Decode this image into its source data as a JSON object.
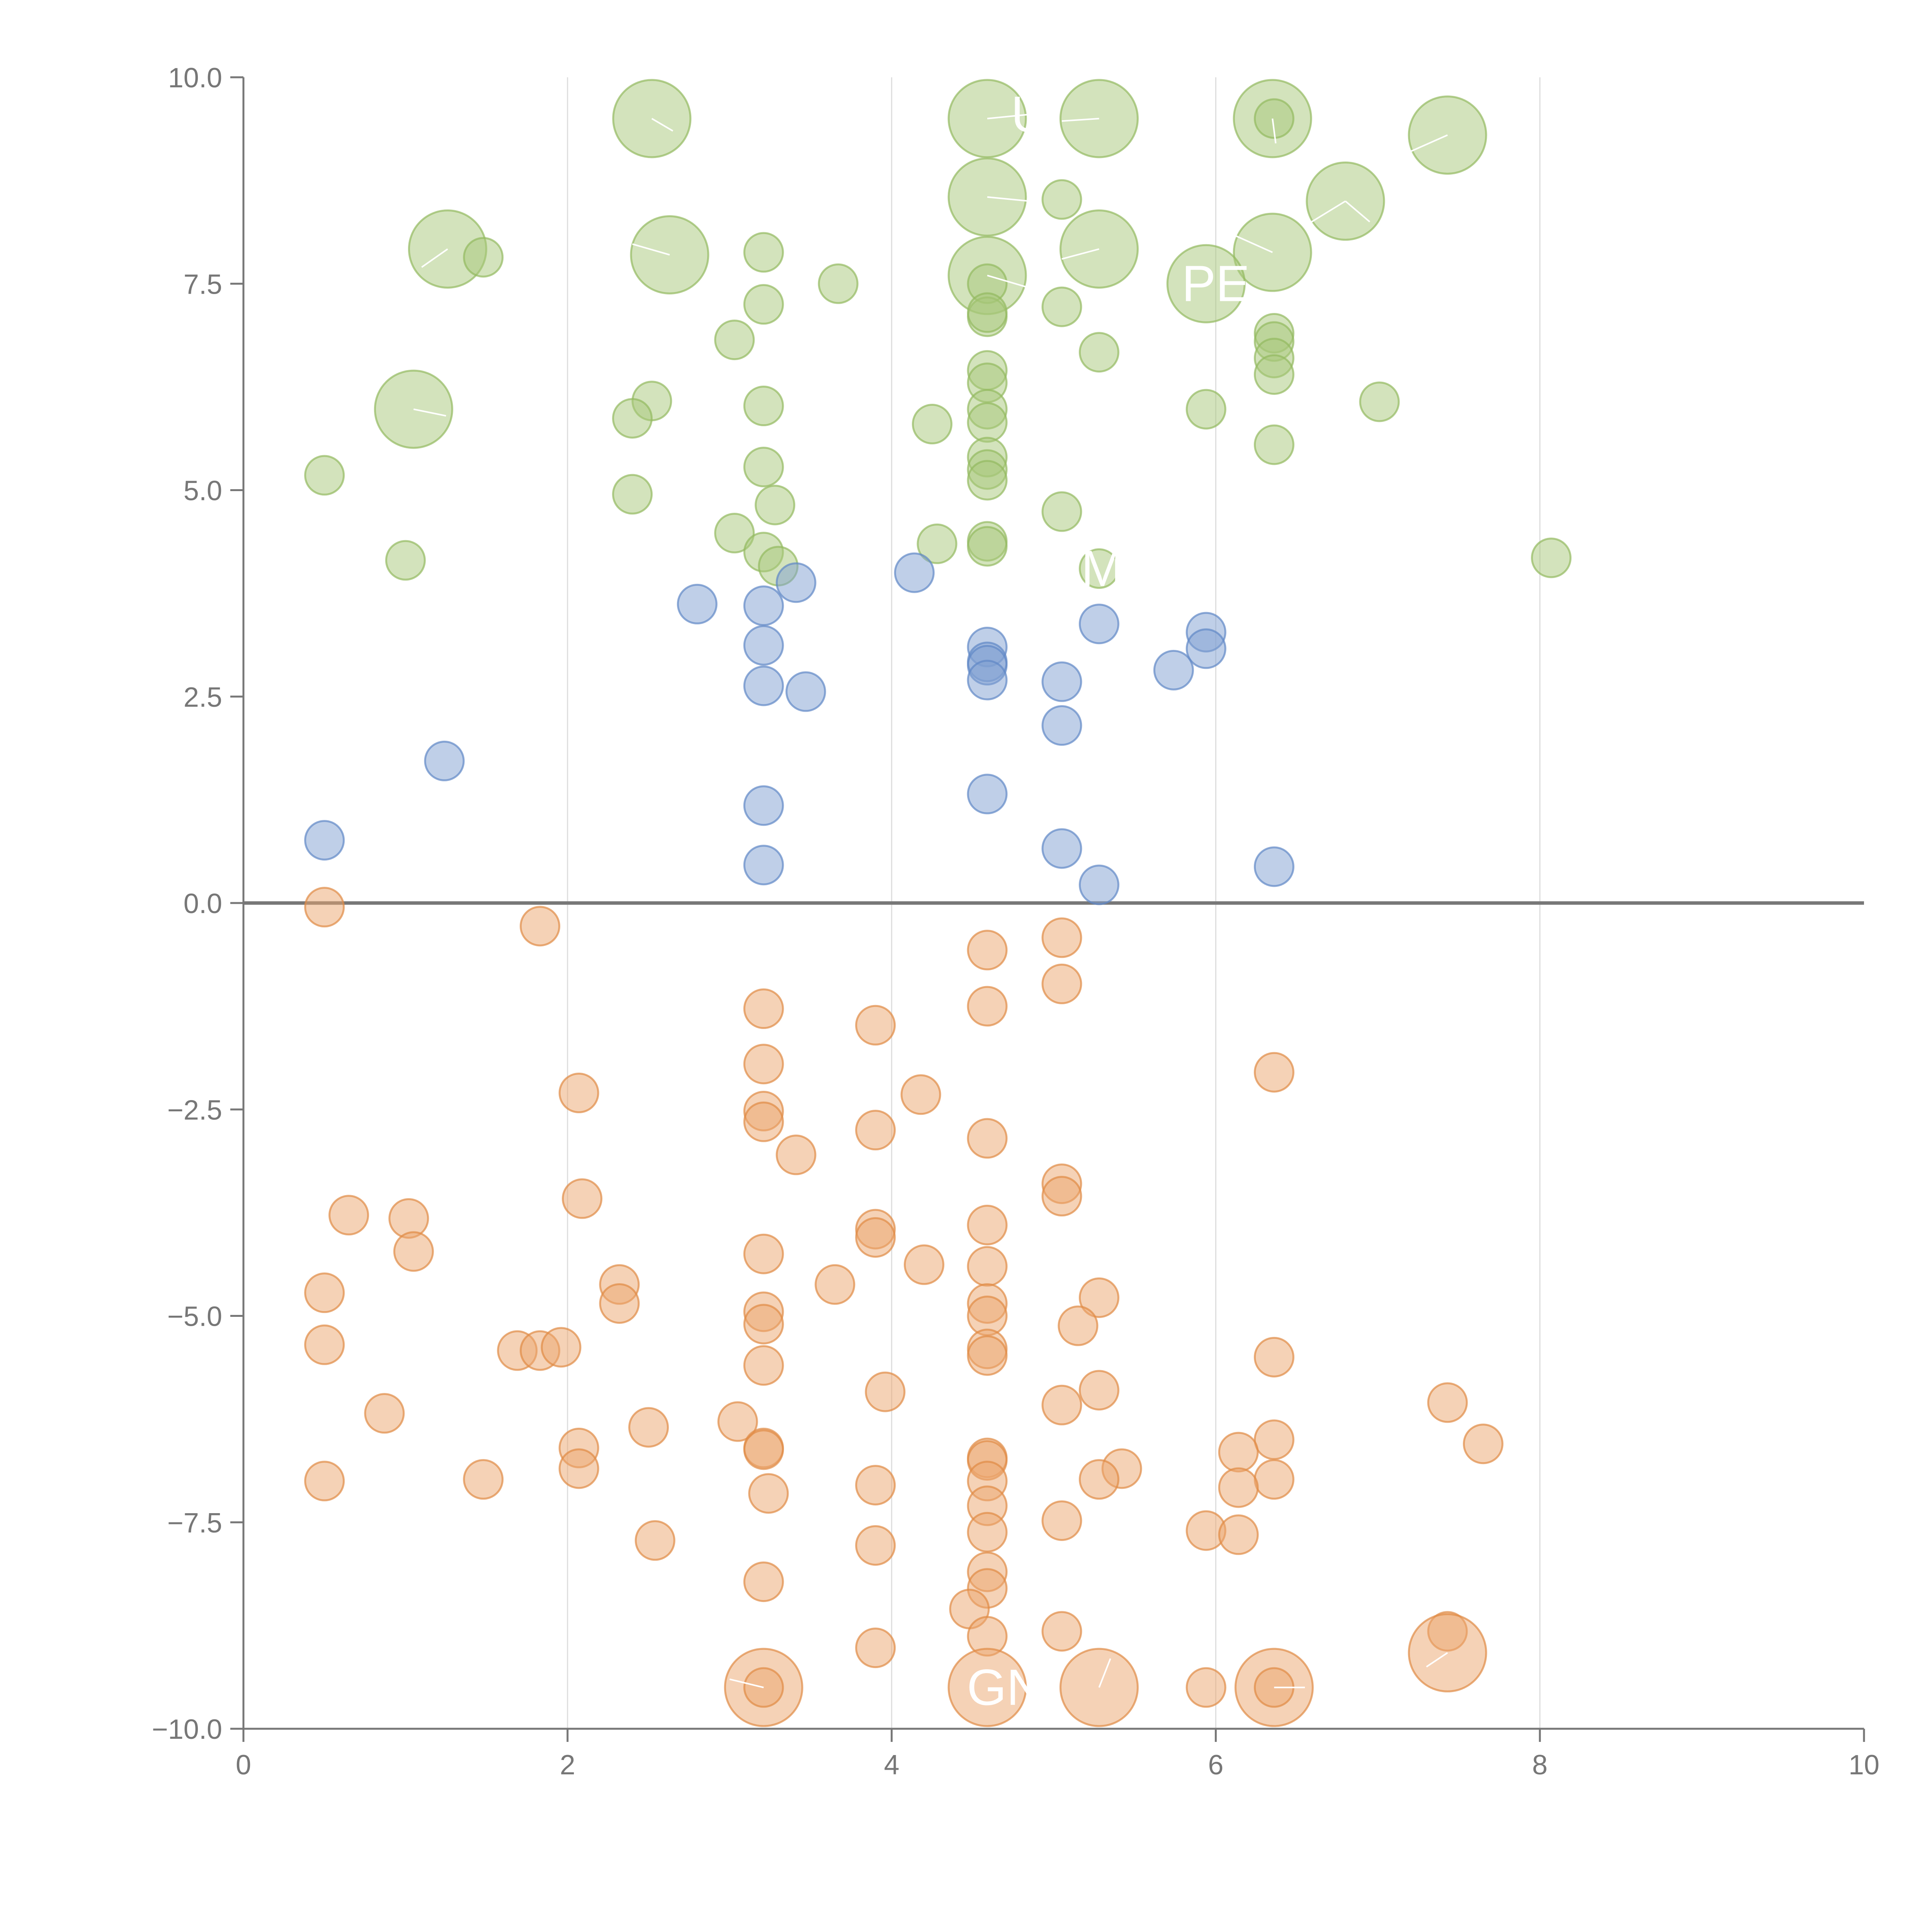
{
  "colors": {
    "green_fill": "#a7c77a",
    "green_stroke": "#93b95f",
    "blue_fill": "#7f9fd1",
    "blue_stroke": "#5f87c6",
    "orange_fill": "#eba56d",
    "orange_stroke": "#e08a45",
    "axis": "#777777",
    "grid": "#dddddd"
  },
  "chart_data": {
    "type": "scatter",
    "title": "",
    "xlabel": "",
    "ylabel": "",
    "xlim": [
      0,
      10
    ],
    "ylim": [
      -10,
      10
    ],
    "grid": "vertical",
    "xticks": [
      "0",
      "2",
      "4",
      "6",
      "8",
      "10"
    ],
    "yticks": [
      "10.0",
      "7.5",
      "5.0",
      "2.5",
      "0.0",
      "−2.5",
      "−5.0",
      "−7.5",
      "−10.0"
    ],
    "ytick_values": [
      10,
      7.5,
      5,
      2.5,
      0,
      -2.5,
      -5,
      -7.5,
      -10
    ],
    "xtick_values": [
      0,
      2,
      4,
      6,
      8,
      10
    ],
    "series": [
      {
        "name": "green",
        "color": "green",
        "points": [
          [
            2.52,
            9.5,
            2
          ],
          [
            4.59,
            9.5,
            2
          ],
          [
            5.28,
            9.5,
            2
          ],
          [
            6.35,
            9.5,
            2
          ],
          [
            6.36,
            9.5,
            1
          ],
          [
            7.43,
            9.3,
            2
          ],
          [
            4.59,
            8.55,
            2
          ],
          [
            5.05,
            8.52,
            1
          ],
          [
            6.8,
            8.5,
            2
          ],
          [
            1.26,
            7.92,
            2
          ],
          [
            1.48,
            7.82,
            1
          ],
          [
            2.63,
            7.85,
            2
          ],
          [
            3.21,
            7.88,
            1
          ],
          [
            5.28,
            7.92,
            2
          ],
          [
            6.35,
            7.88,
            2
          ],
          [
            4.59,
            7.6,
            2
          ],
          [
            4.59,
            7.5,
            1
          ],
          [
            3.67,
            7.5,
            1
          ],
          [
            5.94,
            7.5,
            2
          ],
          [
            3.21,
            7.25,
            1
          ],
          [
            4.59,
            7.1,
            1
          ],
          [
            4.59,
            7.15,
            1
          ],
          [
            5.05,
            7.22,
            1
          ],
          [
            3.03,
            6.82,
            1
          ],
          [
            6.36,
            6.9,
            1
          ],
          [
            6.36,
            6.8,
            1
          ],
          [
            6.36,
            6.6,
            1
          ],
          [
            5.28,
            6.67,
            1
          ],
          [
            4.59,
            6.45,
            1
          ],
          [
            4.59,
            6.3,
            1
          ],
          [
            6.36,
            6.4,
            1
          ],
          [
            1.05,
            5.98,
            2
          ],
          [
            2.52,
            6.08,
            1
          ],
          [
            3.21,
            6.02,
            1
          ],
          [
            4.59,
            5.98,
            1
          ],
          [
            5.94,
            5.98,
            1
          ],
          [
            7.01,
            6.07,
            1
          ],
          [
            2.4,
            5.87,
            1
          ],
          [
            4.25,
            5.8,
            1
          ],
          [
            4.59,
            5.82,
            1
          ],
          [
            0.5,
            5.18,
            1
          ],
          [
            3.21,
            5.28,
            1
          ],
          [
            4.59,
            5.4,
            1
          ],
          [
            4.59,
            5.25,
            1
          ],
          [
            4.59,
            5.12,
            1
          ],
          [
            6.36,
            5.55,
            1
          ],
          [
            2.4,
            4.95,
            1
          ],
          [
            3.28,
            4.82,
            1
          ],
          [
            5.05,
            4.74,
            1
          ],
          [
            3.03,
            4.48,
            1
          ],
          [
            4.28,
            4.35,
            1
          ],
          [
            4.59,
            4.38,
            1
          ],
          [
            4.59,
            4.32,
            1
          ],
          [
            3.21,
            4.25,
            1
          ],
          [
            3.3,
            4.08,
            1
          ],
          [
            1.0,
            4.15,
            1
          ],
          [
            5.28,
            4.05,
            1
          ],
          [
            8.07,
            4.18,
            1
          ]
        ]
      },
      {
        "name": "blue",
        "color": "blue",
        "points": [
          [
            3.41,
            3.88,
            1
          ],
          [
            4.14,
            4.0,
            1
          ],
          [
            2.8,
            3.62,
            1
          ],
          [
            3.21,
            3.6,
            1
          ],
          [
            5.28,
            3.38,
            1
          ],
          [
            5.94,
            3.28,
            1
          ],
          [
            3.21,
            3.12,
            1
          ],
          [
            4.59,
            3.1,
            1
          ],
          [
            5.94,
            3.08,
            1
          ],
          [
            4.59,
            2.92,
            1
          ],
          [
            4.59,
            2.88,
            1
          ],
          [
            5.74,
            2.82,
            1
          ],
          [
            3.21,
            2.63,
            1
          ],
          [
            3.47,
            2.56,
            1
          ],
          [
            4.59,
            2.7,
            1
          ],
          [
            5.05,
            2.68,
            1
          ],
          [
            5.05,
            2.15,
            1
          ],
          [
            1.24,
            1.72,
            1
          ],
          [
            4.59,
            1.32,
            1
          ],
          [
            3.21,
            1.18,
            1
          ],
          [
            0.5,
            0.76,
            1
          ],
          [
            5.05,
            0.66,
            1
          ],
          [
            3.21,
            0.46,
            1
          ],
          [
            6.36,
            0.44,
            1
          ],
          [
            5.28,
            0.22,
            1
          ]
        ]
      },
      {
        "name": "orange",
        "color": "orange",
        "points": [
          [
            0.5,
            -0.05,
            1
          ],
          [
            1.83,
            -0.28,
            1
          ],
          [
            5.05,
            -0.42,
            1
          ],
          [
            4.59,
            -0.57,
            1
          ],
          [
            5.05,
            -0.98,
            1
          ],
          [
            3.21,
            -1.28,
            1
          ],
          [
            4.59,
            -1.25,
            1
          ],
          [
            3.9,
            -1.48,
            1
          ],
          [
            3.21,
            -1.95,
            1
          ],
          [
            6.36,
            -2.05,
            1
          ],
          [
            2.07,
            -2.3,
            1
          ],
          [
            4.18,
            -2.32,
            1
          ],
          [
            3.21,
            -2.52,
            1
          ],
          [
            3.21,
            -2.65,
            1
          ],
          [
            3.9,
            -2.75,
            1
          ],
          [
            4.59,
            -2.85,
            1
          ],
          [
            3.41,
            -3.05,
            1
          ],
          [
            5.05,
            -3.4,
            1
          ],
          [
            5.05,
            -3.55,
            1
          ],
          [
            2.09,
            -3.58,
            1
          ],
          [
            0.65,
            -3.78,
            1
          ],
          [
            1.02,
            -3.82,
            1
          ],
          [
            4.59,
            -3.9,
            1
          ],
          [
            3.9,
            -3.95,
            1
          ],
          [
            3.9,
            -4.05,
            1
          ],
          [
            1.05,
            -4.22,
            1
          ],
          [
            3.21,
            -4.25,
            1
          ],
          [
            4.2,
            -4.38,
            1
          ],
          [
            4.59,
            -4.4,
            1
          ],
          [
            2.32,
            -4.62,
            1
          ],
          [
            3.65,
            -4.62,
            1
          ],
          [
            0.5,
            -4.72,
            1
          ],
          [
            5.28,
            -4.78,
            1
          ],
          [
            2.32,
            -4.85,
            1
          ],
          [
            4.59,
            -4.85,
            1
          ],
          [
            3.21,
            -4.95,
            1
          ],
          [
            4.59,
            -5.0,
            1
          ],
          [
            3.21,
            -5.1,
            1
          ],
          [
            5.15,
            -5.12,
            1
          ],
          [
            0.5,
            -5.35,
            1
          ],
          [
            1.69,
            -5.42,
            1
          ],
          [
            1.83,
            -5.42,
            1
          ],
          [
            1.96,
            -5.38,
            1
          ],
          [
            4.59,
            -5.4,
            1
          ],
          [
            4.59,
            -5.48,
            1
          ],
          [
            6.36,
            -5.5,
            1
          ],
          [
            3.21,
            -5.6,
            1
          ],
          [
            3.96,
            -5.92,
            1
          ],
          [
            5.28,
            -5.9,
            1
          ],
          [
            7.43,
            -6.05,
            1
          ],
          [
            5.05,
            -6.08,
            1
          ],
          [
            0.87,
            -6.18,
            1
          ],
          [
            3.05,
            -6.28,
            1
          ],
          [
            2.5,
            -6.35,
            1
          ],
          [
            6.36,
            -6.5,
            1
          ],
          [
            7.65,
            -6.55,
            1
          ],
          [
            2.07,
            -6.6,
            1
          ],
          [
            3.21,
            -6.6,
            1
          ],
          [
            3.21,
            -6.62,
            1
          ],
          [
            6.14,
            -6.65,
            1
          ],
          [
            4.59,
            -6.72,
            1
          ],
          [
            4.59,
            -6.75,
            1
          ],
          [
            2.07,
            -6.85,
            1
          ],
          [
            5.42,
            -6.85,
            1
          ],
          [
            0.5,
            -7.0,
            1
          ],
          [
            1.48,
            -6.98,
            1
          ],
          [
            3.9,
            -7.05,
            1
          ],
          [
            4.59,
            -7.0,
            1
          ],
          [
            5.28,
            -6.98,
            1
          ],
          [
            6.36,
            -6.98,
            1
          ],
          [
            6.14,
            -7.08,
            1
          ],
          [
            3.24,
            -7.15,
            1
          ],
          [
            4.59,
            -7.3,
            1
          ],
          [
            5.05,
            -7.48,
            1
          ],
          [
            5.94,
            -7.6,
            1
          ],
          [
            6.14,
            -7.65,
            1
          ],
          [
            4.59,
            -7.62,
            1
          ],
          [
            2.54,
            -7.72,
            1
          ],
          [
            3.9,
            -7.78,
            1
          ],
          [
            4.59,
            -8.1,
            1
          ],
          [
            3.21,
            -8.22,
            1
          ],
          [
            4.59,
            -8.3,
            1
          ],
          [
            4.48,
            -8.55,
            1
          ],
          [
            5.05,
            -8.82,
            1
          ],
          [
            4.59,
            -8.88,
            1
          ],
          [
            7.43,
            -8.82,
            1
          ],
          [
            3.9,
            -9.02,
            1
          ],
          [
            7.43,
            -9.08,
            2
          ],
          [
            3.21,
            -9.5,
            2
          ],
          [
            3.21,
            -9.5,
            1
          ],
          [
            4.59,
            -9.5,
            2
          ],
          [
            5.28,
            -9.5,
            2
          ],
          [
            5.94,
            -9.5,
            1
          ],
          [
            6.36,
            -9.5,
            2
          ],
          [
            6.36,
            -9.5,
            1
          ]
        ]
      }
    ],
    "annotations": [
      {
        "text": "U",
        "x": 4.85,
        "y": 9.55
      },
      {
        "text": "PE",
        "x": 6.0,
        "y": 7.5
      },
      {
        "text": "M",
        "x": 5.3,
        "y": 4.05
      },
      {
        "text": "GN",
        "x": 4.7,
        "y": -9.5
      }
    ]
  }
}
